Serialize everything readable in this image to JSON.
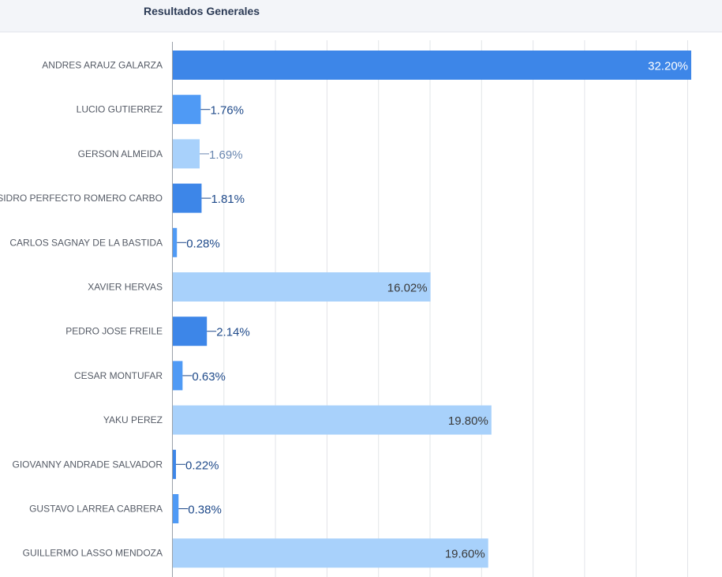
{
  "header": {
    "title": "Resultados Generales"
  },
  "colors": {
    "dark_blue": "#3d86e8",
    "mid_blue": "#4f9af5",
    "light_blue": "#a8d1fb",
    "label_dark": "#1f4a8a",
    "label_light": "#6a87b0",
    "inside_label_on_dark": "#ffffff",
    "inside_label_on_light": "#3a3a3a"
  },
  "chart_data": {
    "type": "bar",
    "orientation": "horizontal",
    "title": "Resultados Generales",
    "xlim": [
      0,
      35
    ],
    "grid": true,
    "categories": [
      "ANDRES ARAUZ GALARZA",
      "LUCIO GUTIERREZ",
      "GERSON ALMEIDA",
      "ISIDRO PERFECTO ROMERO CARBO",
      "CARLOS SAGNAY DE LA BASTIDA",
      "XAVIER HERVAS",
      "PEDRO JOSE FREILE",
      "CESAR MONTUFAR",
      "YAKU PEREZ",
      "GIOVANNY ANDRADE SALVADOR",
      "GUSTAVO LARREA CABRERA",
      "GUILLERMO LASSO MENDOZA"
    ],
    "values": [
      32.2,
      1.76,
      1.69,
      1.81,
      0.28,
      16.02,
      2.14,
      0.63,
      19.8,
      0.22,
      0.38,
      19.6
    ],
    "value_labels": [
      "32.20%",
      "1.76%",
      "1.69%",
      "1.81%",
      "0.28%",
      "16.02%",
      "2.14%",
      "0.63%",
      "19.80%",
      "0.22%",
      "0.38%",
      "19.60%"
    ],
    "bar_colors": [
      "dark_blue",
      "mid_blue",
      "light_blue",
      "dark_blue",
      "mid_blue",
      "light_blue",
      "dark_blue",
      "mid_blue",
      "light_blue",
      "dark_blue",
      "mid_blue",
      "light_blue"
    ]
  }
}
